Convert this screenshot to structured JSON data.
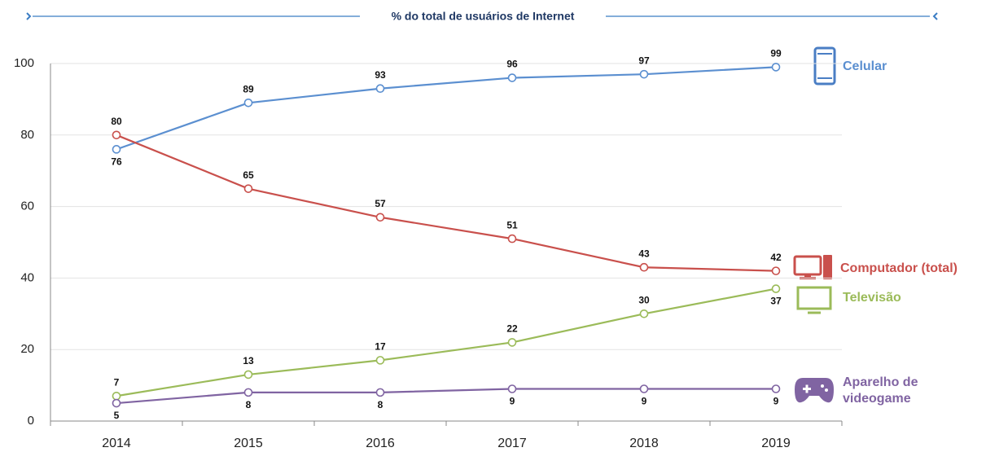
{
  "chart_data": {
    "type": "line",
    "title": "% do total de usuários de Internet",
    "categories": [
      "2014",
      "2015",
      "2016",
      "2017",
      "2018",
      "2019"
    ],
    "series": [
      {
        "name": "Celular",
        "color": "#5b8fd0",
        "values": [
          76,
          89,
          93,
          96,
          97,
          99
        ]
      },
      {
        "name": "Computador (total)",
        "color": "#c9504c",
        "values": [
          80,
          65,
          57,
          51,
          43,
          42
        ]
      },
      {
        "name": "Televisão",
        "color": "#9bbb59",
        "values": [
          7,
          13,
          17,
          22,
          30,
          37
        ]
      },
      {
        "name": "Aparelho de videogame",
        "color": "#8064a2",
        "values": [
          5,
          8,
          8,
          9,
          9,
          9
        ]
      }
    ],
    "ylim": [
      0,
      100
    ],
    "yticks": [
      0,
      20,
      40,
      60,
      80,
      100
    ],
    "grid": true
  }
}
